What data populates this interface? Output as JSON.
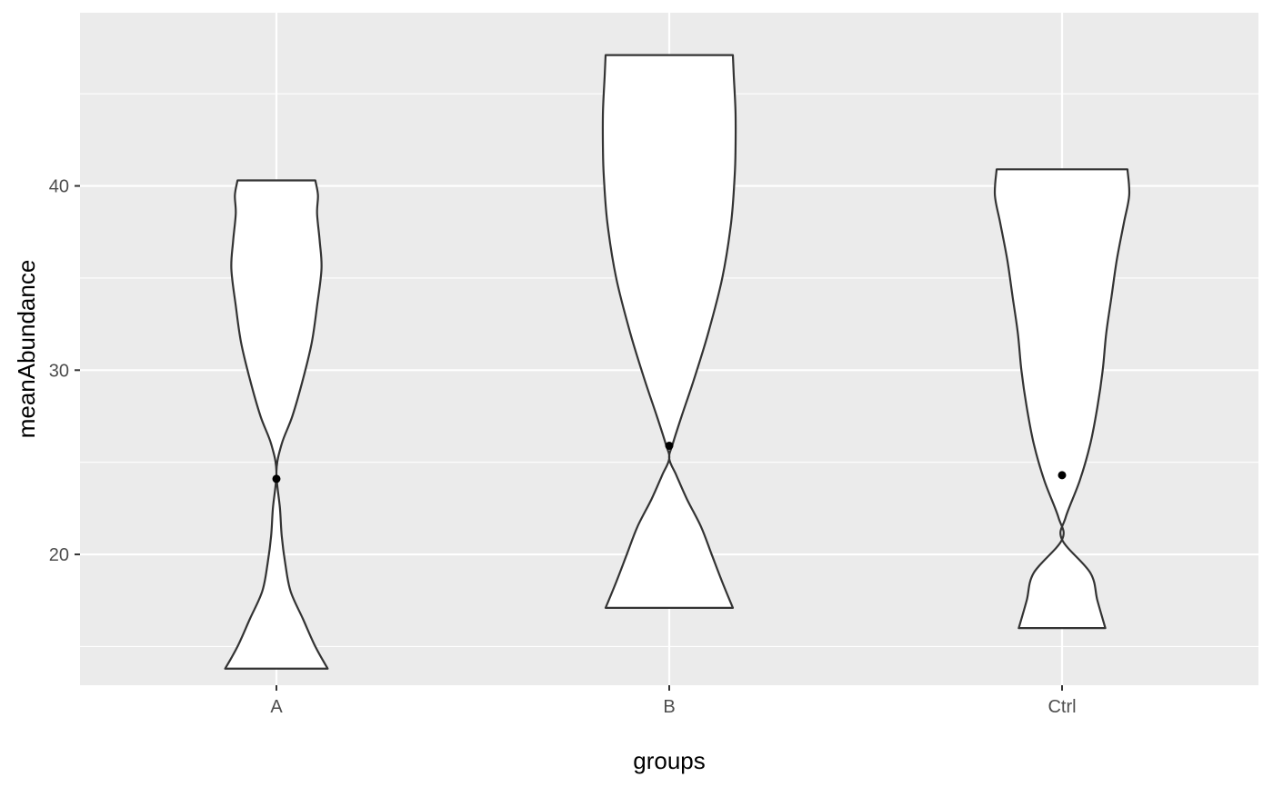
{
  "chart_data": {
    "type": "violin",
    "xlabel": "groups",
    "ylabel": "meanAbundance",
    "categories": [
      "A",
      "B",
      "Ctrl"
    ],
    "ylim": [
      12.9,
      49.4
    ],
    "y_ticks": [
      20,
      30,
      40
    ],
    "y_tick_labels": [
      "20",
      "30",
      "40"
    ],
    "y_minor_ticks": [
      15,
      25,
      35,
      45
    ],
    "grid": true,
    "background": "#EBEBEB",
    "gridline_color": "#FFFFFF",
    "violin_fill": "#FFFFFF",
    "violin_stroke": "#333333",
    "point_color": "#000000",
    "violins": [
      {
        "group": "A",
        "mean": 24.1,
        "min": 13.8,
        "max": 40.3,
        "density": [
          [
            13.8,
            0.29
          ],
          [
            15,
            0.22
          ],
          [
            16.5,
            0.15
          ],
          [
            18,
            0.08
          ],
          [
            19.5,
            0.05
          ],
          [
            21,
            0.03
          ],
          [
            22.5,
            0.02
          ],
          [
            24.5,
            0.0
          ],
          [
            26,
            0.03
          ],
          [
            27.5,
            0.09
          ],
          [
            29.5,
            0.15
          ],
          [
            31.5,
            0.2
          ],
          [
            33.5,
            0.23
          ],
          [
            35.5,
            0.255
          ],
          [
            37,
            0.245
          ],
          [
            38.5,
            0.23
          ],
          [
            39.5,
            0.235
          ],
          [
            40.3,
            0.22
          ]
        ]
      },
      {
        "group": "B",
        "mean": 25.9,
        "min": 17.1,
        "max": 47.1,
        "density": [
          [
            17.1,
            0.36
          ],
          [
            18.5,
            0.3
          ],
          [
            20,
            0.24
          ],
          [
            21.5,
            0.18
          ],
          [
            23,
            0.1
          ],
          [
            24.3,
            0.04
          ],
          [
            25.2,
            0.0
          ],
          [
            26,
            0.02
          ],
          [
            27.5,
            0.07
          ],
          [
            29.5,
            0.14
          ],
          [
            32,
            0.22
          ],
          [
            35,
            0.3
          ],
          [
            38,
            0.35
          ],
          [
            40.5,
            0.37
          ],
          [
            42,
            0.375
          ],
          [
            44,
            0.375
          ],
          [
            46,
            0.365
          ],
          [
            47.1,
            0.36
          ]
        ]
      },
      {
        "group": "Ctrl",
        "mean": 24.3,
        "min": 16.0,
        "max": 40.9,
        "density": [
          [
            16.0,
            0.245
          ],
          [
            17.5,
            0.2
          ],
          [
            19,
            0.16
          ],
          [
            20.8,
            0.0
          ],
          [
            22,
            0.02
          ],
          [
            24,
            0.1
          ],
          [
            26,
            0.16
          ],
          [
            28,
            0.2
          ],
          [
            30,
            0.23
          ],
          [
            32,
            0.25
          ],
          [
            34,
            0.28
          ],
          [
            36,
            0.31
          ],
          [
            38,
            0.35
          ],
          [
            39.5,
            0.38
          ],
          [
            40.9,
            0.37
          ]
        ]
      }
    ]
  }
}
